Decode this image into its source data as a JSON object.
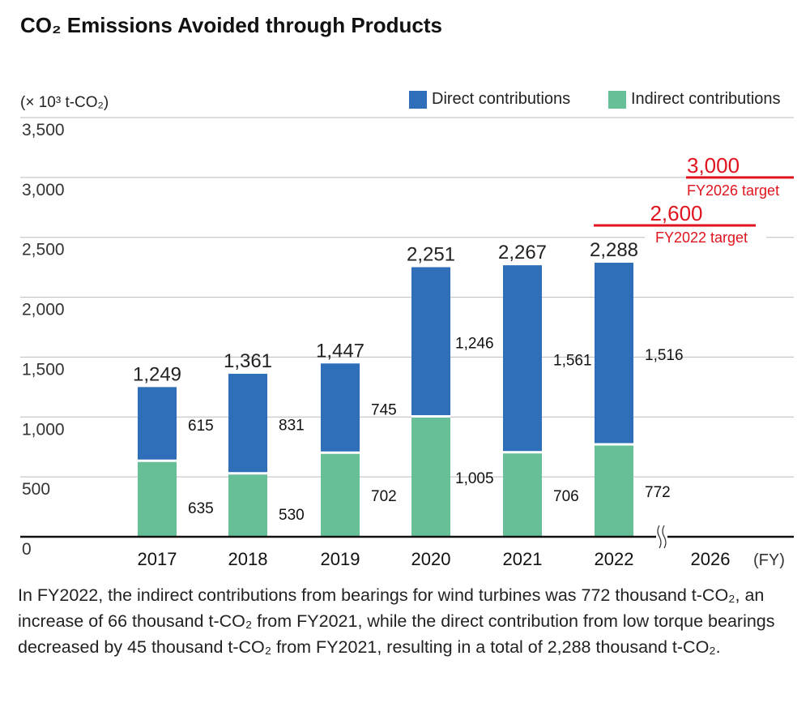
{
  "title": "CO₂ Emissions Avoided through Products",
  "chart_data": {
    "type": "bar",
    "stacked": true,
    "title": "CO₂ Emissions Avoided through Products",
    "ylabel": "(× 10³ t-CO₂)",
    "xlabel": "(FY)",
    "ylim": [
      0,
      3500
    ],
    "yticks": [
      0,
      500,
      1000,
      1500,
      2000,
      2500,
      3000,
      3500
    ],
    "ytick_labels": [
      "0",
      "500",
      "1,000",
      "1,500",
      "2,000",
      "2,500",
      "3,000",
      "3,500"
    ],
    "grid": true,
    "legend_position": "top-right",
    "categories": [
      "2017",
      "2018",
      "2019",
      "2020",
      "2021",
      "2022"
    ],
    "extra_category": "2026",
    "axis_break": "between 2022 and 2026",
    "series": [
      {
        "name": "Indirect contributions",
        "color": "#66bf96",
        "values": [
          635,
          530,
          702,
          1005,
          706,
          772
        ],
        "labels": [
          "635",
          "530",
          "702",
          "1,005",
          "706",
          "772"
        ]
      },
      {
        "name": "Direct contributions",
        "color": "#2f6fba",
        "values": [
          615,
          831,
          745,
          1246,
          1561,
          1516
        ],
        "labels": [
          "615",
          "831",
          "745",
          "1,246",
          "1,561",
          "1,516"
        ]
      }
    ],
    "totals": [
      1249,
      1361,
      1447,
      2251,
      2267,
      2288
    ],
    "total_labels": [
      "1,249",
      "1,361",
      "1,447",
      "2,251",
      "2,267",
      "2,288"
    ],
    "targets": [
      {
        "value": 2600,
        "value_label": "2,600",
        "label": "FY2022 target",
        "color": "#e0141e"
      },
      {
        "value": 3000,
        "value_label": "3,000",
        "label": "FY2026 target",
        "color": "#e0141e"
      }
    ]
  },
  "note": "In FY2022, the indirect contributions from bearings for wind turbines was 772 thousand t-CO₂, an increase of 66 thousand t-CO₂ from FY2021, while the direct contribution from low torque bearings decreased by 45 thousand t-CO₂ from FY2021, resulting in a total of 2,288 thousand t-CO₂."
}
